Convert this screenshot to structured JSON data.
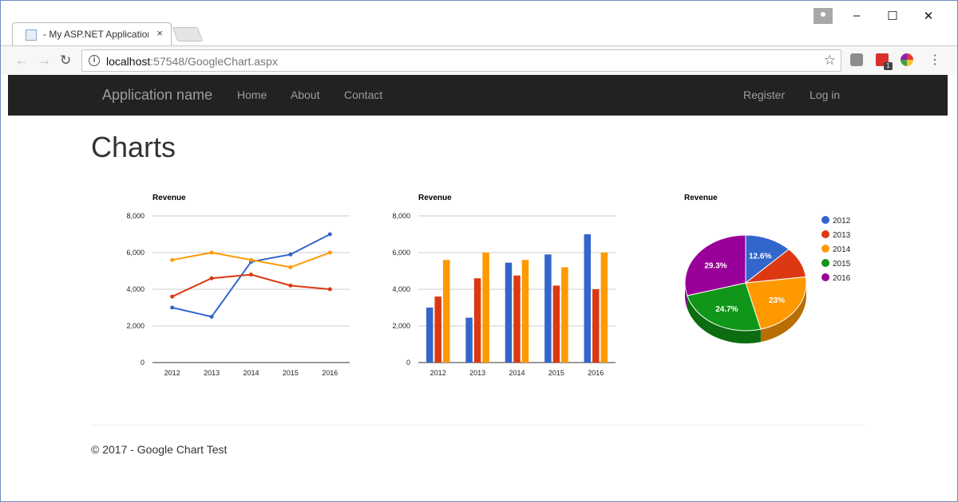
{
  "browser": {
    "tab_title": "- My ASP.NET Application",
    "tab_close": "×",
    "url_host": "localhost",
    "url_path": ":57548/GoogleChart.aspx",
    "star": "☆",
    "menu": "⋮",
    "ext_badge": "1",
    "minimize": "–",
    "maximize": "☐",
    "close": "✕",
    "back": "←",
    "forward": "→",
    "reload": "↻",
    "info": "i"
  },
  "navbar": {
    "brand": "Application name",
    "links": [
      "Home",
      "About",
      "Contact"
    ],
    "right_links": [
      "Register",
      "Log in"
    ]
  },
  "page": {
    "title": "Charts",
    "footer": "© 2017 - Google Chart Test"
  },
  "colors": {
    "2012": "#3366cc",
    "2013": "#dc3912",
    "2014": "#ff9900",
    "2015": "#109618",
    "2016": "#990099"
  },
  "chart_data": [
    {
      "type": "line",
      "title": "Revenue",
      "categories": [
        "2012",
        "2013",
        "2014",
        "2015",
        "2016"
      ],
      "yticks": [
        "0",
        "2,000",
        "4,000",
        "6,000",
        "8,000"
      ],
      "ylim": [
        0,
        8000
      ],
      "grid": true,
      "series": [
        {
          "values": [
            3000,
            2500,
            5500,
            5900,
            7000
          ],
          "color": "#3366cc"
        },
        {
          "values": [
            3600,
            4600,
            4800,
            4200,
            4000
          ],
          "color": "#dc3912"
        },
        {
          "values": [
            5600,
            6000,
            5600,
            5200,
            6000
          ],
          "color": "#ff9900"
        }
      ]
    },
    {
      "type": "bar",
      "title": "Revenue",
      "categories": [
        "2012",
        "2013",
        "2014",
        "2015",
        "2016"
      ],
      "yticks": [
        "0",
        "2,000",
        "4,000",
        "6,000",
        "8,000"
      ],
      "ylim": [
        0,
        8000
      ],
      "grid": true,
      "series": [
        {
          "values": [
            3000,
            2450,
            5450,
            5900,
            7000
          ],
          "color": "#3366cc"
        },
        {
          "values": [
            3600,
            4600,
            4750,
            4200,
            4000
          ],
          "color": "#dc3912"
        },
        {
          "values": [
            5600,
            6000,
            5600,
            5200,
            6000
          ],
          "color": "#ff9900"
        }
      ]
    },
    {
      "type": "pie",
      "title": "Revenue",
      "legend_position": "right",
      "labels": [
        "2012",
        "2013",
        "2014",
        "2015",
        "2016"
      ],
      "values": [
        12.6,
        10.4,
        23.0,
        24.7,
        29.3
      ],
      "slice_labels": [
        "12.6%",
        "",
        "23%",
        "24.7%",
        "29.3%"
      ],
      "colors": [
        "#3366cc",
        "#dc3912",
        "#ff9900",
        "#109618",
        "#990099"
      ]
    }
  ]
}
